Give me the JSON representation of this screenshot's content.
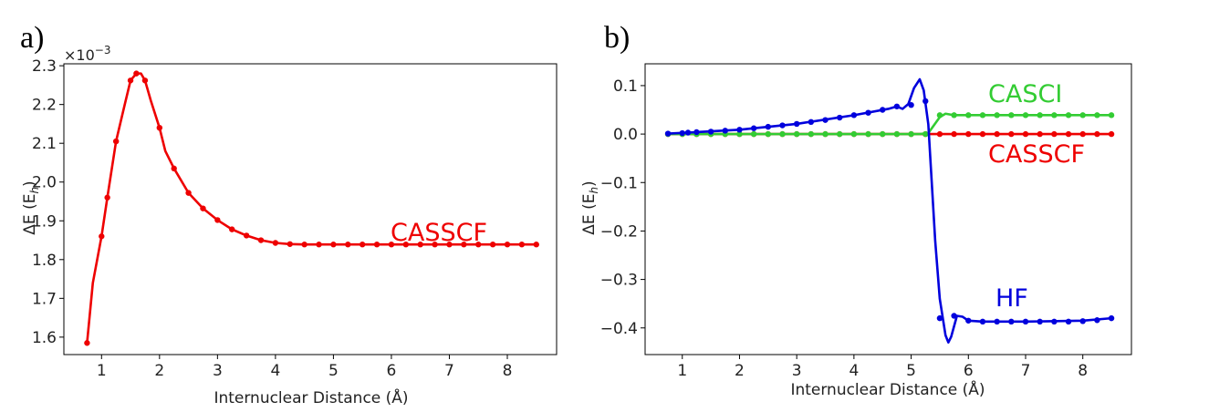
{
  "chart_data": [
    {
      "panel": "a)",
      "type": "line",
      "xlabel": "Internuclear Distance (Å)",
      "ylabel_main": "ΔE (E",
      "ylabel_sub": "h",
      "ylabel_end": ")",
      "y_scale_label": "×10",
      "y_scale_exp": "−3",
      "xlim": [
        0.35,
        8.85
      ],
      "ylim": [
        1.555,
        2.305
      ],
      "xticks": [
        1,
        2,
        3,
        4,
        5,
        6,
        7,
        8
      ],
      "yticks": [
        1.6,
        1.7,
        1.8,
        1.9,
        2.0,
        2.1,
        2.2,
        2.3
      ],
      "ytick_labels": [
        "1.6",
        "1.7",
        "1.8",
        "1.9",
        "2.0",
        "2.1",
        "2.2",
        "2.3"
      ],
      "grid": false,
      "series": [
        {
          "name": "CASSCF",
          "color": "#ee0000",
          "curve": [
            [
              0.75,
              1.585
            ],
            [
              0.85,
              1.74
            ],
            [
              1.0,
              1.86
            ],
            [
              1.1,
              1.96
            ],
            [
              1.25,
              2.105
            ],
            [
              1.4,
              2.2
            ],
            [
              1.5,
              2.262
            ],
            [
              1.6,
              2.28
            ],
            [
              1.68,
              2.28
            ],
            [
              1.75,
              2.262
            ],
            [
              1.85,
              2.21
            ],
            [
              2.0,
              2.14
            ],
            [
              2.1,
              2.08
            ],
            [
              2.25,
              2.035
            ],
            [
              2.5,
              1.972
            ],
            [
              2.75,
              1.932
            ],
            [
              3.0,
              1.902
            ],
            [
              3.25,
              1.878
            ],
            [
              3.5,
              1.862
            ],
            [
              3.75,
              1.85
            ],
            [
              4.0,
              1.843
            ],
            [
              4.25,
              1.84
            ],
            [
              4.5,
              1.839
            ],
            [
              8.5,
              1.839
            ]
          ],
          "points_x": [
            0.75,
            1.0,
            1.1,
            1.25,
            1.5,
            1.6,
            1.75,
            2.0,
            2.25,
            2.5,
            2.75,
            3.0,
            3.25,
            3.5,
            3.75,
            4.0,
            4.25,
            4.5,
            4.75,
            5.0,
            5.25,
            5.5,
            5.75,
            6.0,
            6.25,
            6.5,
            6.75,
            7.0,
            7.25,
            7.5,
            7.75,
            8.0,
            8.25,
            8.5
          ],
          "points_y": [
            1.585,
            1.86,
            1.96,
            2.105,
            2.262,
            2.28,
            2.262,
            2.14,
            2.035,
            1.972,
            1.932,
            1.902,
            1.878,
            1.862,
            1.85,
            1.843,
            1.84,
            1.839,
            1.839,
            1.839,
            1.839,
            1.839,
            1.839,
            1.839,
            1.839,
            1.839,
            1.839,
            1.839,
            1.839,
            1.839,
            1.839,
            1.839,
            1.839,
            1.839
          ]
        }
      ]
    },
    {
      "panel": "b)",
      "type": "line",
      "xlabel": "Internuclear Distance (Å)",
      "ylabel_main": "ΔE (E",
      "ylabel_sub": "h",
      "ylabel_end": ")",
      "xlim": [
        0.35,
        8.85
      ],
      "ylim": [
        -0.455,
        0.145
      ],
      "xticks": [
        1,
        2,
        3,
        4,
        5,
        6,
        7,
        8
      ],
      "yticks": [
        0.1,
        0.0,
        -0.1,
        -0.2,
        -0.3,
        -0.4
      ],
      "ytick_labels": [
        "0.1",
        "0.0",
        "−0.1",
        "−0.2",
        "−0.3",
        "−0.4"
      ],
      "grid": false,
      "series": [
        {
          "name": "CASSCF",
          "color": "#ee0000",
          "curve": [
            [
              0.75,
              0.0
            ],
            [
              8.5,
              0.0
            ]
          ],
          "points_x": [
            0.75,
            1.0,
            1.25,
            1.5,
            1.75,
            2.0,
            2.25,
            2.5,
            2.75,
            3.0,
            3.25,
            3.5,
            3.75,
            4.0,
            4.25,
            4.5,
            4.75,
            5.0,
            5.25,
            5.5,
            5.75,
            6.0,
            6.25,
            6.5,
            6.75,
            7.0,
            7.25,
            7.5,
            7.75,
            8.0,
            8.25,
            8.5
          ],
          "points_y": [
            0,
            0,
            0,
            0,
            0,
            0,
            0,
            0,
            0,
            0,
            0,
            0,
            0,
            0,
            0,
            0,
            0,
            0,
            0,
            0,
            0,
            0,
            0,
            0,
            0,
            0,
            0,
            0,
            0,
            0,
            0,
            0
          ]
        },
        {
          "name": "CASCI",
          "color": "#33cc33",
          "curve": [
            [
              0.75,
              0.0
            ],
            [
              5.15,
              0.0
            ],
            [
              5.3,
              0.002
            ],
            [
              5.5,
              0.035
            ],
            [
              5.6,
              0.042
            ],
            [
              5.75,
              0.039
            ],
            [
              8.5,
              0.039
            ]
          ],
          "points_x": [
            0.75,
            1.0,
            1.25,
            1.5,
            1.75,
            2.0,
            2.25,
            2.5,
            2.75,
            3.0,
            3.25,
            3.5,
            3.75,
            4.0,
            4.25,
            4.5,
            4.75,
            5.0,
            5.25,
            5.5,
            5.75,
            6.0,
            6.25,
            6.5,
            6.75,
            7.0,
            7.25,
            7.5,
            7.75,
            8.0,
            8.25,
            8.5
          ],
          "points_y": [
            0,
            0,
            0,
            0,
            0,
            0,
            0,
            0,
            0,
            0,
            0,
            0,
            0,
            0,
            0,
            0,
            0,
            0,
            0,
            0.039,
            0.039,
            0.039,
            0.039,
            0.039,
            0.039,
            0.039,
            0.039,
            0.039,
            0.039,
            0.039,
            0.039,
            0.039
          ]
        },
        {
          "name": "HF",
          "color": "#0000dd",
          "curve": [
            [
              0.75,
              0.001
            ],
            [
              1.25,
              0.004
            ],
            [
              2.0,
              0.009
            ],
            [
              3.0,
              0.021
            ],
            [
              4.0,
              0.039
            ],
            [
              4.6,
              0.052
            ],
            [
              4.75,
              0.057
            ],
            [
              4.85,
              0.052
            ],
            [
              4.95,
              0.062
            ],
            [
              5.05,
              0.095
            ],
            [
              5.15,
              0.113
            ],
            [
              5.22,
              0.09
            ],
            [
              5.3,
              0.02
            ],
            [
              5.35,
              -0.08
            ],
            [
              5.42,
              -0.22
            ],
            [
              5.5,
              -0.34
            ],
            [
              5.6,
              -0.415
            ],
            [
              5.65,
              -0.43
            ],
            [
              5.7,
              -0.418
            ],
            [
              5.8,
              -0.375
            ],
            [
              5.9,
              -0.377
            ],
            [
              6.0,
              -0.385
            ],
            [
              6.25,
              -0.387
            ],
            [
              7.0,
              -0.387
            ],
            [
              8.0,
              -0.385
            ],
            [
              8.5,
              -0.38
            ]
          ],
          "points_x": [
            0.75,
            1.0,
            1.1,
            1.25,
            1.5,
            1.75,
            2.0,
            2.25,
            2.5,
            2.75,
            3.0,
            3.25,
            3.5,
            3.75,
            4.0,
            4.25,
            4.5,
            4.75,
            5.0,
            5.25,
            5.5,
            5.75,
            6.0,
            6.25,
            6.5,
            6.75,
            7.0,
            7.25,
            7.5,
            7.75,
            8.0,
            8.25,
            8.5
          ],
          "points_y": [
            0.001,
            0.002,
            0.003,
            0.004,
            0.005,
            0.007,
            0.009,
            0.012,
            0.015,
            0.018,
            0.021,
            0.025,
            0.029,
            0.034,
            0.039,
            0.044,
            0.05,
            0.057,
            0.06,
            0.068,
            -0.38,
            -0.375,
            -0.385,
            -0.387,
            -0.387,
            -0.387,
            -0.387,
            -0.387,
            -0.387,
            -0.387,
            -0.386,
            -0.384,
            -0.38
          ]
        }
      ]
    }
  ]
}
